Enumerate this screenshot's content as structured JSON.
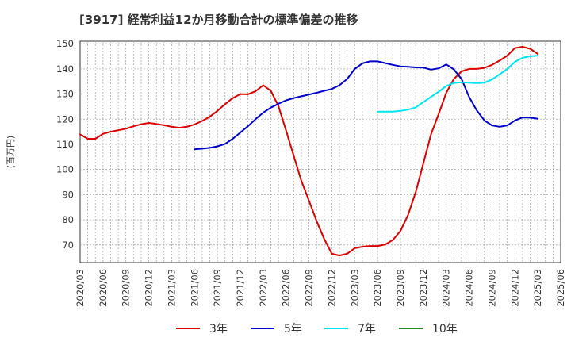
{
  "chart_data": {
    "type": "line",
    "title": "[3917]  経常利益12か月移動合計の標準偏差の推移",
    "ylabel": "(百万円)",
    "xlabel": "",
    "ylim": [
      63,
      151
    ],
    "yticks": [
      70,
      80,
      90,
      100,
      110,
      120,
      130,
      140,
      150
    ],
    "x_start": "2020/03",
    "x_end": "2025/06",
    "xticks": [
      "2020/03",
      "2020/06",
      "2020/09",
      "2020/12",
      "2021/03",
      "2021/06",
      "2021/09",
      "2021/12",
      "2022/03",
      "2022/06",
      "2022/09",
      "2022/12",
      "2023/03",
      "2023/06",
      "2023/09",
      "2023/12",
      "2024/03",
      "2024/06",
      "2024/09",
      "2024/12",
      "2025/03",
      "2025/06"
    ],
    "grid": true,
    "legend_position": "bottom",
    "series": [
      {
        "name": "3年",
        "color": "#dd0000",
        "x": [
          "2020/03",
          "2020/04",
          "2020/05",
          "2020/06",
          "2020/07",
          "2020/08",
          "2020/09",
          "2020/10",
          "2020/11",
          "2020/12",
          "2021/01",
          "2021/02",
          "2021/03",
          "2021/04",
          "2021/05",
          "2021/06",
          "2021/07",
          "2021/08",
          "2021/09",
          "2021/10",
          "2021/11",
          "2021/12",
          "2022/01",
          "2022/02",
          "2022/03",
          "2022/04",
          "2022/05",
          "2022/06",
          "2022/07",
          "2022/08",
          "2022/09",
          "2022/10",
          "2022/11",
          "2022/12",
          "2023/01",
          "2023/02",
          "2023/03",
          "2023/04",
          "2023/05",
          "2023/06",
          "2023/07",
          "2023/08",
          "2023/09",
          "2023/10",
          "2023/11",
          "2023/12",
          "2024/01",
          "2024/02",
          "2024/03",
          "2024/04",
          "2024/05",
          "2024/06",
          "2024/07",
          "2024/08",
          "2024/09",
          "2024/10",
          "2024/11",
          "2024/12",
          "2025/01",
          "2025/02",
          "2025/03"
        ],
        "values": [
          114,
          112.2,
          112.2,
          114.2,
          115,
          115.6,
          116.2,
          117.2,
          118,
          118.5,
          118.1,
          117.6,
          117,
          116.6,
          117,
          117.9,
          119.3,
          121,
          123.3,
          126,
          128.4,
          130,
          129.9,
          131.1,
          133.5,
          131.3,
          125.2,
          115.5,
          105.5,
          95.5,
          87.6,
          79.5,
          72.4,
          66.5,
          65.8,
          66.5,
          68.7,
          69.3,
          69.6,
          69.6,
          70.2,
          72,
          75.6,
          82,
          91,
          102.5,
          114,
          122,
          130.5,
          136,
          139,
          140,
          140,
          140.4,
          141.6,
          143.3,
          145.3,
          148.3,
          148.8,
          148,
          146
        ]
      },
      {
        "name": "5年",
        "color": "#0000cc",
        "x": [
          "2021/06",
          "2021/07",
          "2021/08",
          "2021/09",
          "2021/10",
          "2021/11",
          "2021/12",
          "2022/01",
          "2022/02",
          "2022/03",
          "2022/04",
          "2022/05",
          "2022/06",
          "2022/07",
          "2022/08",
          "2022/09",
          "2022/10",
          "2022/11",
          "2022/12",
          "2023/01",
          "2023/02",
          "2023/03",
          "2023/04",
          "2023/05",
          "2023/06",
          "2023/07",
          "2023/08",
          "2023/09",
          "2023/10",
          "2023/11",
          "2023/12",
          "2024/01",
          "2024/02",
          "2024/03",
          "2024/04",
          "2024/05",
          "2024/06",
          "2024/07",
          "2024/08",
          "2024/09",
          "2024/10",
          "2024/11",
          "2024/12",
          "2025/01",
          "2025/02",
          "2025/03"
        ],
        "values": [
          108,
          108.3,
          108.6,
          109.2,
          110.2,
          112.2,
          114.7,
          117.2,
          120,
          122.6,
          124.6,
          126.1,
          127.5,
          128.4,
          129.1,
          129.8,
          130.5,
          131.3,
          132,
          133.5,
          136,
          140,
          142.2,
          143,
          143,
          142.3,
          141.6,
          141,
          140.8,
          140.6,
          140.5,
          139.7,
          140.2,
          141.8,
          139.8,
          136,
          128.8,
          123.5,
          119.5,
          117.5,
          117,
          117.5,
          119.5,
          120.7,
          120.6,
          120.2
        ]
      },
      {
        "name": "7年",
        "color": "#00e5ee",
        "x": [
          "2023/06",
          "2023/07",
          "2023/08",
          "2023/09",
          "2023/10",
          "2023/11",
          "2023/12",
          "2024/01",
          "2024/02",
          "2024/03",
          "2024/04",
          "2024/05",
          "2024/06",
          "2024/07",
          "2024/08",
          "2024/09",
          "2024/10",
          "2024/11",
          "2024/12",
          "2025/01",
          "2025/02",
          "2025/03"
        ],
        "values": [
          123,
          123,
          123,
          123.3,
          123.8,
          124.7,
          126.8,
          128.9,
          130.9,
          133.2,
          134.4,
          134.7,
          134.5,
          134.3,
          134.5,
          135.8,
          137.8,
          140,
          142.8,
          144.4,
          145,
          145.3
        ]
      },
      {
        "name": "10年",
        "color": "#228b22",
        "x": [],
        "values": []
      }
    ]
  }
}
